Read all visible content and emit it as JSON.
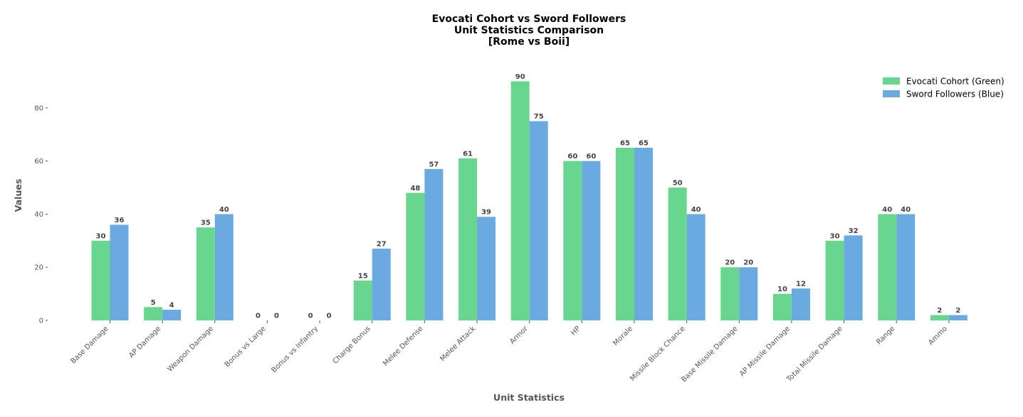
{
  "chart_data": {
    "type": "bar",
    "title_lines": [
      "Evocati Cohort vs Sword Followers",
      "Unit Statistics Comparison",
      "[Rome vs Boii]"
    ],
    "xlabel": "Unit Statistics",
    "ylabel": "Values",
    "ylim": [
      0,
      92
    ],
    "yticks": [
      0,
      20,
      40,
      60,
      80
    ],
    "categories": [
      "Base Damage",
      "AP Damage",
      "Weapon Damage",
      "Bonus vs Large",
      "Bonus vs Infantry",
      "Charge Bonus",
      "Melee Defense",
      "Melee Attack",
      "Armor",
      "HP",
      "Morale",
      "Missile Block Chance",
      "Base Missile Damage",
      "AP Missile Damage",
      "Total Missile Damage",
      "Range",
      "Ammo"
    ],
    "series": [
      {
        "name": "Evocati Cohort (Green)",
        "color": "#69d68f",
        "values": [
          30,
          5,
          35,
          0,
          0,
          15,
          48,
          61,
          90,
          60,
          65,
          50,
          20,
          10,
          30,
          40,
          2
        ]
      },
      {
        "name": "Sword Followers (Blue)",
        "color": "#6aaae0",
        "values": [
          36,
          4,
          40,
          0,
          0,
          27,
          57,
          39,
          75,
          60,
          65,
          40,
          20,
          12,
          32,
          40,
          2
        ]
      }
    ],
    "grid": false,
    "legend_position": "top-right"
  }
}
